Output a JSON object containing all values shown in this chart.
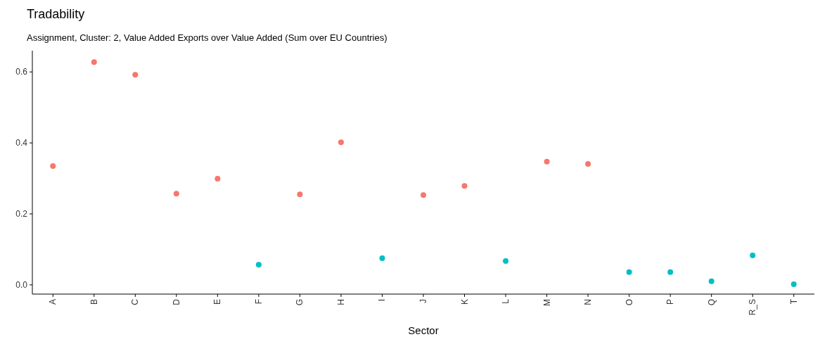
{
  "chart_data": {
    "type": "scatter",
    "title": "Tradability",
    "subtitle": "Assignment, Cluster: 2, Value Added Exports over Value Added (Sum over EU Countries)",
    "xlabel": "Sector",
    "categories": [
      "A",
      "B",
      "C",
      "D",
      "E",
      "F",
      "G",
      "H",
      "I",
      "J",
      "K",
      "L",
      "M",
      "N",
      "O",
      "P",
      "Q",
      "R_S",
      "T"
    ],
    "series": [
      {
        "color": "#f8766d",
        "values": [
          0.335,
          0.628,
          0.592,
          0.257,
          0.299,
          null,
          0.255,
          0.402,
          null,
          0.253,
          0.279,
          null,
          0.347,
          0.341,
          null,
          null,
          null,
          null,
          null
        ]
      },
      {
        "color": "#00bfc4",
        "values": [
          null,
          null,
          null,
          null,
          null,
          0.057,
          null,
          null,
          0.075,
          null,
          null,
          0.067,
          null,
          null,
          0.036,
          0.036,
          0.01,
          0.083,
          0.002
        ]
      }
    ],
    "ylim": [
      -0.026,
      0.66
    ],
    "yticks": [
      {
        "value": 0,
        "label": "0.0"
      },
      {
        "value": 0.2,
        "label": "0.2"
      },
      {
        "value": 0.4,
        "label": "0.4"
      },
      {
        "value": 0.6,
        "label": "0.6"
      }
    ],
    "marker": "circle"
  }
}
